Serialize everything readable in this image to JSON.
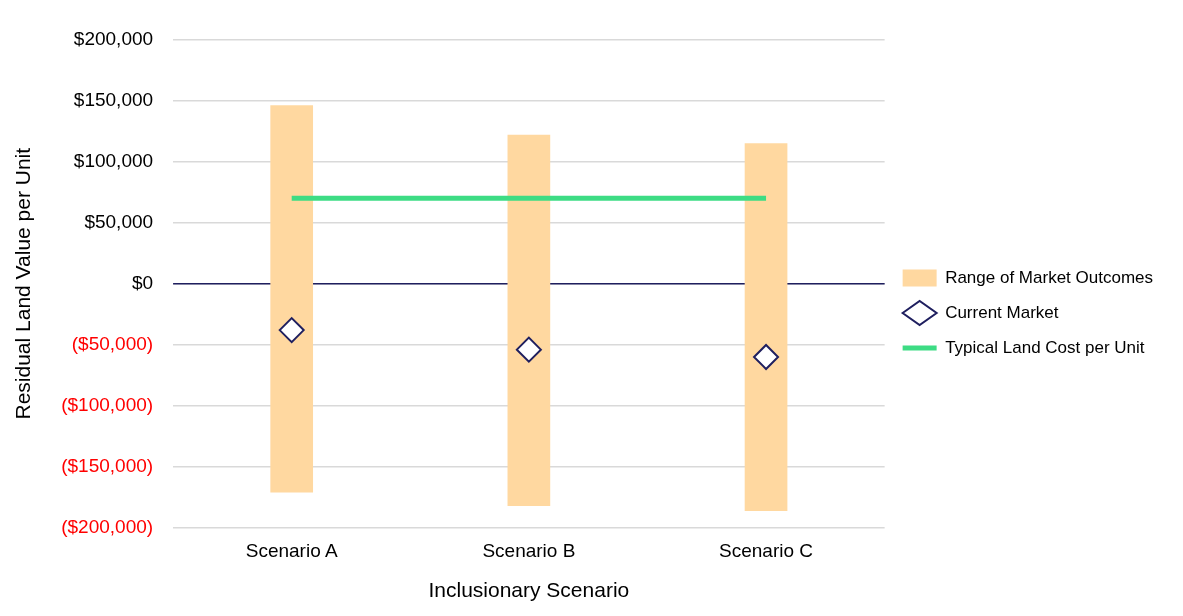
{
  "chart_data": {
    "type": "bar",
    "xlabel": "Inclusionary Scenario",
    "ylabel": "Residual Land Value per Unit",
    "categories": [
      "Scenario A",
      "Scenario B",
      "Scenario C"
    ],
    "series": [
      {
        "name": "Range of Market Outcomes",
        "color": "#ffd8a0",
        "base": [
          -171000,
          -182000,
          -186000
        ],
        "values": [
          317000,
          304000,
          301000
        ]
      },
      {
        "name": "Current Market",
        "type": "scatter",
        "color": "#1f1f5f",
        "marker": "diamond",
        "x": [
          "Scenario A",
          "Scenario B",
          "Scenario C"
        ],
        "values": [
          -38000,
          -54000,
          -60000
        ]
      },
      {
        "name": "Typical Land Cost per Unit",
        "type": "line",
        "color": "#3ddc84",
        "values": [
          70000,
          70000,
          70000
        ]
      }
    ],
    "ylim": [
      -200000,
      200000
    ],
    "yticks": [
      {
        "value": -200000,
        "label": "($200,000)"
      },
      {
        "value": -150000,
        "label": "($150,000)"
      },
      {
        "value": -100000,
        "label": "($100,000)"
      },
      {
        "value": -50000,
        "label": "($50,000)"
      },
      {
        "value": 0,
        "label": "$0"
      },
      {
        "value": 50000,
        "label": "$50,000"
      },
      {
        "value": 100000,
        "label": "$100,000"
      },
      {
        "value": 150000,
        "label": "$150,000"
      },
      {
        "value": 200000,
        "label": "$200,000"
      }
    ],
    "ref_lines": [
      {
        "axis": "y",
        "value": 0,
        "color": "#1f1f5f"
      }
    ],
    "grid": "y",
    "legend": "right"
  }
}
